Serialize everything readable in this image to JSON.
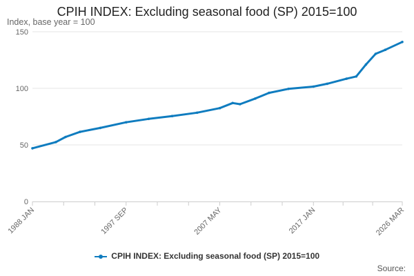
{
  "chart_data": {
    "type": "line",
    "title": "CPIH INDEX: Excluding seasonal food (SP) 2015=100",
    "ylabel": "Index, base year = 100",
    "ylim": [
      0,
      150
    ],
    "yticks": [
      0,
      50,
      100,
      150
    ],
    "xtick_labels": [
      "1988 JAN",
      "1997 SEP",
      "2007 MAY",
      "2017 JAN",
      "2026 MAR"
    ],
    "grid": true,
    "legend_position": "bottom",
    "series": [
      {
        "name": "CPIH INDEX: Excluding seasonal food (SP) 2015=100",
        "color": "#0f7cbf",
        "points": [
          {
            "x": "1988 JAN",
            "y": 47.0
          },
          {
            "x": "1990 JUN",
            "y": 52.5
          },
          {
            "x": "1991 JUN",
            "y": 57.0
          },
          {
            "x": "1992 DEC",
            "y": 61.5
          },
          {
            "x": "1995 JAN",
            "y": 65.0
          },
          {
            "x": "1997 SEP",
            "y": 70.0
          },
          {
            "x": "2000 JAN",
            "y": 73.0
          },
          {
            "x": "2002 JUN",
            "y": 75.5
          },
          {
            "x": "2005 JAN",
            "y": 78.5
          },
          {
            "x": "2007 MAY",
            "y": 82.5
          },
          {
            "x": "2008 SEP",
            "y": 87.0
          },
          {
            "x": "2009 JUN",
            "y": 86.0
          },
          {
            "x": "2011 JAN",
            "y": 91.0
          },
          {
            "x": "2012 JUN",
            "y": 96.0
          },
          {
            "x": "2014 JUN",
            "y": 99.5
          },
          {
            "x": "2017 JAN",
            "y": 101.5
          },
          {
            "x": "2018 JUN",
            "y": 104.0
          },
          {
            "x": "2020 JUN",
            "y": 108.5
          },
          {
            "x": "2021 JUN",
            "y": 110.5
          },
          {
            "x": "2022 JUN",
            "y": 121.0
          },
          {
            "x": "2023 JUN",
            "y": 130.5
          },
          {
            "x": "2024 JUN",
            "y": 134.0
          },
          {
            "x": "2026 MAR",
            "y": 141.0
          }
        ]
      }
    ]
  },
  "legend": {
    "label": "CPIH INDEX: Excluding seasonal food (SP) 2015=100"
  },
  "footer": {
    "source_label": "Source:"
  }
}
